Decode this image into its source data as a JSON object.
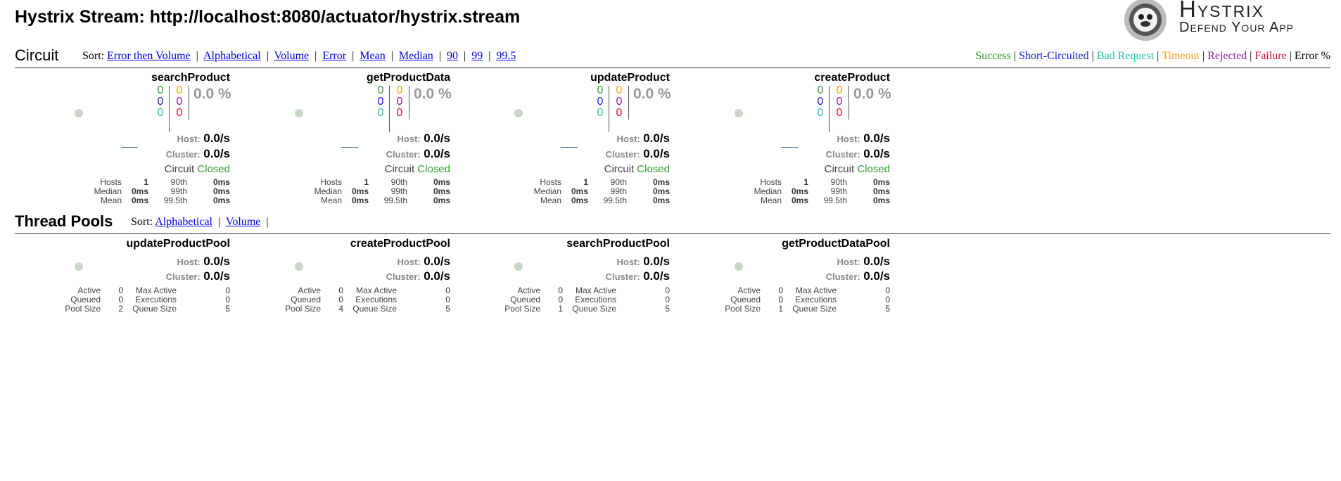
{
  "page": {
    "title": "Hystrix Stream: http://localhost:8080/actuator/hystrix.stream"
  },
  "logo": {
    "name": "Hystrix",
    "tagline": "Defend Your App",
    "icon": "hystrix-mascot-icon"
  },
  "colors": {
    "success": "#2e9e2e",
    "short_circuited": "#1d1de0",
    "bad_request": "#1ec7a5",
    "timeout": "#f0a018",
    "rejected": "#8a1fa0",
    "failure": "#e0102a",
    "link": "#0000ee"
  },
  "circuit_section": {
    "title": "Circuit",
    "sort_label": "Sort:",
    "sort_options": [
      "Error then Volume",
      "Alphabetical",
      "Volume",
      "Error",
      "Mean",
      "Median",
      "90",
      "99",
      "99.5"
    ],
    "legend": [
      "Success",
      "Short-Circuited",
      "Bad Request",
      "Timeout",
      "Rejected",
      "Failure",
      "Error %"
    ],
    "circuits": [
      {
        "name": "searchProduct",
        "success": "0",
        "short_circuited": "0",
        "bad_request": "0",
        "timeout": "0",
        "rejected": "0",
        "failure": "0",
        "error_pct": "0.0 %",
        "host_label": "Host:",
        "host_rate": "0.0/s",
        "cluster_label": "Cluster:",
        "cluster_rate": "0.0/s",
        "circuit_label": "Circuit",
        "circuit_status": "Closed",
        "stats": {
          "hosts_label": "Hosts",
          "hosts": "1",
          "median_label": "Median",
          "median": "0ms",
          "mean_label": "Mean",
          "mean": "0ms",
          "p90_label": "90th",
          "p90": "0ms",
          "p99_label": "99th",
          "p99": "0ms",
          "p995_label": "99.5th",
          "p995": "0ms"
        }
      },
      {
        "name": "getProductData",
        "success": "0",
        "short_circuited": "0",
        "bad_request": "0",
        "timeout": "0",
        "rejected": "0",
        "failure": "0",
        "error_pct": "0.0 %",
        "host_label": "Host:",
        "host_rate": "0.0/s",
        "cluster_label": "Cluster:",
        "cluster_rate": "0.0/s",
        "circuit_label": "Circuit",
        "circuit_status": "Closed",
        "stats": {
          "hosts_label": "Hosts",
          "hosts": "1",
          "median_label": "Median",
          "median": "0ms",
          "mean_label": "Mean",
          "mean": "0ms",
          "p90_label": "90th",
          "p90": "0ms",
          "p99_label": "99th",
          "p99": "0ms",
          "p995_label": "99.5th",
          "p995": "0ms"
        }
      },
      {
        "name": "updateProduct",
        "success": "0",
        "short_circuited": "0",
        "bad_request": "0",
        "timeout": "0",
        "rejected": "0",
        "failure": "0",
        "error_pct": "0.0 %",
        "host_label": "Host:",
        "host_rate": "0.0/s",
        "cluster_label": "Cluster:",
        "cluster_rate": "0.0/s",
        "circuit_label": "Circuit",
        "circuit_status": "Closed",
        "stats": {
          "hosts_label": "Hosts",
          "hosts": "1",
          "median_label": "Median",
          "median": "0ms",
          "mean_label": "Mean",
          "mean": "0ms",
          "p90_label": "90th",
          "p90": "0ms",
          "p99_label": "99th",
          "p99": "0ms",
          "p995_label": "99.5th",
          "p995": "0ms"
        }
      },
      {
        "name": "createProduct",
        "success": "0",
        "short_circuited": "0",
        "bad_request": "0",
        "timeout": "0",
        "rejected": "0",
        "failure": "0",
        "error_pct": "0.0 %",
        "host_label": "Host:",
        "host_rate": "0.0/s",
        "cluster_label": "Cluster:",
        "cluster_rate": "0.0/s",
        "circuit_label": "Circuit",
        "circuit_status": "Closed",
        "stats": {
          "hosts_label": "Hosts",
          "hosts": "1",
          "median_label": "Median",
          "median": "0ms",
          "mean_label": "Mean",
          "mean": "0ms",
          "p90_label": "90th",
          "p90": "0ms",
          "p99_label": "99th",
          "p99": "0ms",
          "p995_label": "99.5th",
          "p995": "0ms"
        }
      }
    ]
  },
  "threadpool_section": {
    "title": "Thread Pools",
    "sort_label": "Sort:",
    "sort_options": [
      "Alphabetical",
      "Volume"
    ],
    "pools": [
      {
        "name": "updateProductPool",
        "host_label": "Host:",
        "host_rate": "0.0/s",
        "cluster_label": "Cluster:",
        "cluster_rate": "0.0/s",
        "stats": {
          "active_label": "Active",
          "active": "0",
          "queued_label": "Queued",
          "queued": "0",
          "pool_size_label": "Pool Size",
          "pool_size": "2",
          "max_active_label": "Max Active",
          "max_active": "0",
          "executions_label": "Executions",
          "executions": "0",
          "queue_size_label": "Queue Size",
          "queue_size": "5"
        }
      },
      {
        "name": "createProductPool",
        "host_label": "Host:",
        "host_rate": "0.0/s",
        "cluster_label": "Cluster:",
        "cluster_rate": "0.0/s",
        "stats": {
          "active_label": "Active",
          "active": "0",
          "queued_label": "Queued",
          "queued": "0",
          "pool_size_label": "Pool Size",
          "pool_size": "4",
          "max_active_label": "Max Active",
          "max_active": "0",
          "executions_label": "Executions",
          "executions": "0",
          "queue_size_label": "Queue Size",
          "queue_size": "5"
        }
      },
      {
        "name": "searchProductPool",
        "host_label": "Host:",
        "host_rate": "0.0/s",
        "cluster_label": "Cluster:",
        "cluster_rate": "0.0/s",
        "stats": {
          "active_label": "Active",
          "active": "0",
          "queued_label": "Queued",
          "queued": "0",
          "pool_size_label": "Pool Size",
          "pool_size": "1",
          "max_active_label": "Max Active",
          "max_active": "0",
          "executions_label": "Executions",
          "executions": "0",
          "queue_size_label": "Queue Size",
          "queue_size": "5"
        }
      },
      {
        "name": "getProductDataPool",
        "host_label": "Host:",
        "host_rate": "0.0/s",
        "cluster_label": "Cluster:",
        "cluster_rate": "0.0/s",
        "stats": {
          "active_label": "Active",
          "active": "0",
          "queued_label": "Queued",
          "queued": "0",
          "pool_size_label": "Pool Size",
          "pool_size": "1",
          "max_active_label": "Max Active",
          "max_active": "0",
          "executions_label": "Executions",
          "executions": "0",
          "queue_size_label": "Queue Size",
          "queue_size": "5"
        }
      }
    ]
  }
}
